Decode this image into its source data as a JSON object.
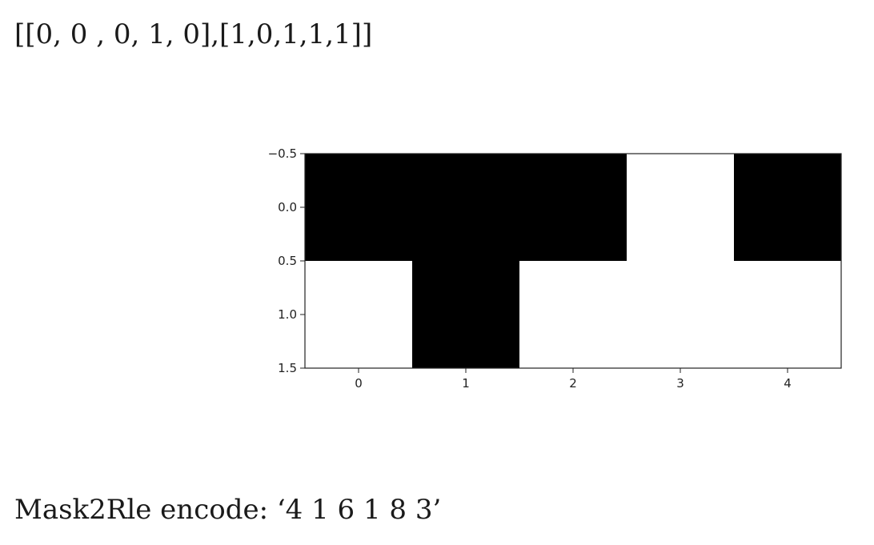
{
  "header": {
    "array_text": "[[0, 0 , 0, 1, 0],[1,0,1,1,1]]"
  },
  "footer": {
    "rle_text": "Mask2Rle encode: ‘4 1 6 1 8 3’"
  },
  "chart_data": {
    "type": "heatmap",
    "colormap": "gray",
    "colors": {
      "0": "#000000",
      "1": "#ffffff"
    },
    "matrix": [
      [
        0,
        0,
        0,
        1,
        0
      ],
      [
        1,
        0,
        1,
        1,
        1
      ]
    ],
    "x_ticks": [
      0,
      1,
      2,
      3,
      4
    ],
    "x_tick_labels": [
      "0",
      "1",
      "2",
      "3",
      "4"
    ],
    "y_ticks": [
      -0.5,
      0.0,
      0.5,
      1.0,
      1.5
    ],
    "y_tick_labels": [
      "−0.5",
      "0.0",
      "0.5",
      "1.0",
      "1.5"
    ],
    "xlim": [
      -0.5,
      4.5
    ],
    "ylim": [
      1.5,
      -0.5
    ],
    "y_inverted": true,
    "title": "",
    "xlabel": "",
    "ylabel": ""
  }
}
